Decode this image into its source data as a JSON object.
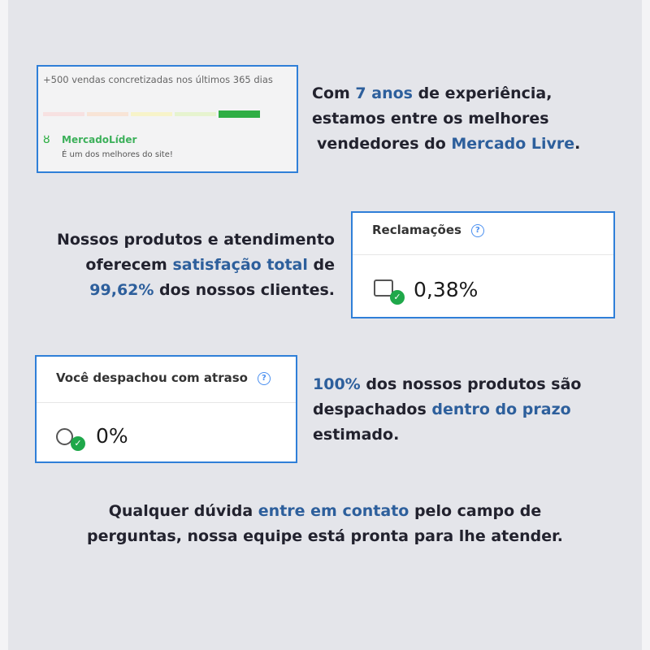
{
  "seller_card": {
    "sales": "+500 vendas concretizadas nos últimos 365 dias",
    "badge": "MercadoLíder",
    "subtitle": "É um dos melhores do site!",
    "reputation_level": 5,
    "reputation_colors": [
      "#f7e1e1",
      "#f8e4d6",
      "#f7f3c9",
      "#e6f3cf",
      "#2fae44"
    ]
  },
  "block1": {
    "t1": "Com ",
    "h1": "7 anos",
    "t2": " de experiência,",
    "line2": "estamos entre os melhores",
    "t3": "vendedores do ",
    "h2": "Mercado Livre",
    "t4": "."
  },
  "block2": {
    "line1": "Nossos produtos e atendimento",
    "t1": "oferecem ",
    "h1": "satisfação total",
    "t2": " de",
    "h2": "99,62%",
    "t3": " dos nossos clientes."
  },
  "complaints": {
    "label": "Reclamações",
    "help": "?",
    "value": "0,38%"
  },
  "delay": {
    "label": "Você despachou com atraso",
    "help": "?",
    "value": "0%"
  },
  "block3": {
    "h1": "100%",
    "t1": " dos nossos produtos são",
    "t2": "despachados ",
    "h2": "dentro do prazo",
    "t3": "estimado."
  },
  "footer": {
    "t1": "Qualquer dúvida ",
    "h1": "entre em contato",
    "t2": " pelo campo de",
    "line2": "perguntas, nossa equipe está pronta para lhe atender."
  },
  "colors": {
    "accent": "#2d5f9c",
    "border": "#2f7fd8",
    "success": "#1fa84a"
  }
}
